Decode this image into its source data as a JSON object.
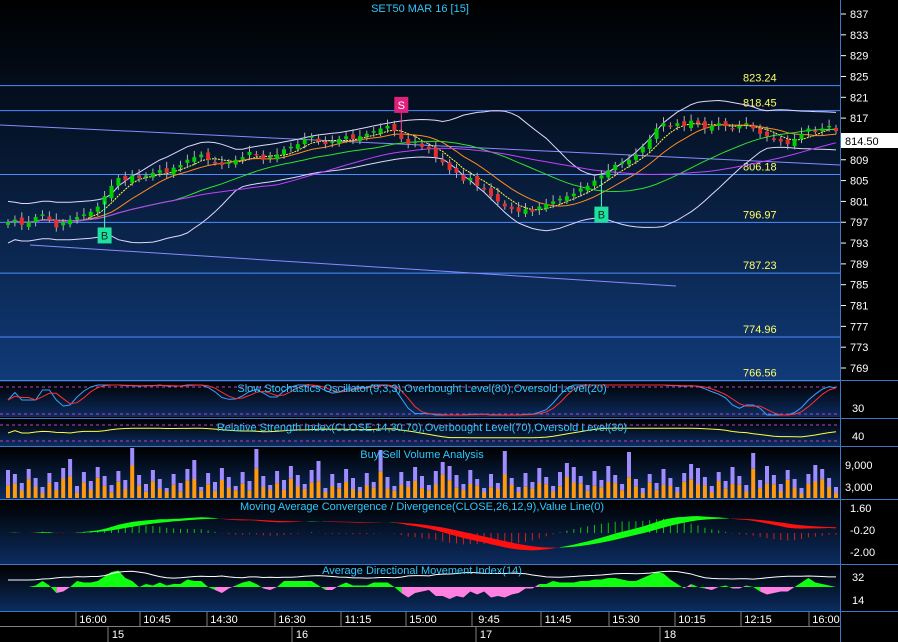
{
  "window": {
    "title": "SET50 MAR 16  [15]"
  },
  "colors": {
    "price_bg_top": "#000000",
    "price_bg_bottom": "#103a78",
    "axis_text": "#ffffff",
    "title_text": "#2ec8ff",
    "level_text": "#ffff66",
    "up_candle": "#00c800",
    "down_candle": "#e03030",
    "last_price_box": "#ffffff"
  },
  "price_panel": {
    "y_ticks": [
      "837",
      "833",
      "829",
      "825",
      "821",
      "817",
      "813",
      "809",
      "805",
      "801",
      "797",
      "793",
      "789",
      "785",
      "781",
      "777",
      "773",
      "769"
    ],
    "last_price": "814.50",
    "levels": [
      {
        "label": "823.24",
        "value": 823.24
      },
      {
        "label": "818.45",
        "value": 818.45
      },
      {
        "label": "806.18",
        "value": 806.18
      },
      {
        "label": "796.97",
        "value": 796.97
      },
      {
        "label": "787.23",
        "value": 787.23
      },
      {
        "label": "774.96",
        "value": 774.96
      },
      {
        "label": "766.56",
        "value": 766.56
      }
    ],
    "signals": [
      {
        "label": "S",
        "index": 57,
        "type": "sell"
      },
      {
        "label": "B",
        "index": 14,
        "type": "buy"
      },
      {
        "label": "B",
        "index": 86,
        "type": "buy"
      }
    ]
  },
  "indicators": {
    "stochastic": {
      "title": "Slow Stochastics Oscillator(9,3,3),Overbought Level(80),Oversold Level(20)",
      "tick": "30"
    },
    "rsi": {
      "title": "Relative Strength Index(CLOSE,14,30,70),Overbought Level(70),Oversold Level(30)",
      "tick": "40"
    },
    "volume": {
      "title": "Buy/Sell Volume Analysis",
      "ticks": [
        "9,000",
        "3,000"
      ]
    },
    "macd": {
      "title": "Moving Average Convergence / Divergence(CLOSE,26,12,9),Value Line(0)",
      "ticks": [
        "1.60",
        "-0.20",
        "-2.00"
      ]
    },
    "adx": {
      "title": "Average Directional Movement Index(14)",
      "ticks": [
        "32",
        "14"
      ]
    }
  },
  "time_axis": {
    "times": [
      "16:00",
      "10:45",
      "14:30",
      "16:30",
      "11:15",
      "15:00",
      "9:45",
      "11:45",
      "15:30",
      "10:15",
      "12:15",
      "16:00"
    ],
    "dates": [
      "15",
      "16",
      "17",
      "18"
    ]
  },
  "chart_data": {
    "type": "candlestick",
    "title": "SET50 MAR 16  [15]",
    "x_time_labels": [
      "16:00",
      "10:45",
      "14:30",
      "16:30",
      "11:15",
      "15:00",
      "9:45",
      "11:45",
      "15:30",
      "10:15",
      "12:15",
      "16:00"
    ],
    "x_date_labels": [
      "15",
      "16",
      "17",
      "18"
    ],
    "y_range": [
      766,
      839
    ],
    "close": [
      797,
      797.5,
      796.5,
      797,
      798,
      798.5,
      797.5,
      796,
      797,
      797.5,
      798,
      798.5,
      799,
      800,
      802,
      804,
      805.5,
      805,
      806,
      805.5,
      806,
      806.5,
      807,
      806.5,
      807.5,
      808,
      809,
      809.5,
      810,
      809,
      808.5,
      808,
      808.5,
      809,
      809.5,
      810.5,
      810,
      809,
      809.5,
      810,
      811,
      811.5,
      812,
      813,
      813.5,
      812.5,
      812,
      812.5,
      813,
      813.5,
      813,
      813.5,
      814,
      814.5,
      815,
      815.5,
      814.5,
      813,
      812,
      812.5,
      811.5,
      811,
      809.5,
      808.5,
      807,
      806.5,
      805,
      805.5,
      804,
      803.5,
      802,
      801,
      800,
      799.5,
      799,
      799.5,
      799,
      800,
      800.5,
      801,
      801.5,
      802,
      802.5,
      803.5,
      804,
      805,
      806,
      807,
      808,
      808.5,
      809,
      810,
      811.5,
      813,
      815,
      816,
      815.5,
      816,
      815.5,
      816.5,
      816,
      815,
      815.5,
      816,
      815.5,
      815,
      815.5,
      816,
      815,
      814,
      813.5,
      813,
      812.5,
      812,
      813,
      814,
      815,
      814.5,
      815,
      815.5,
      814.5
    ]
  }
}
